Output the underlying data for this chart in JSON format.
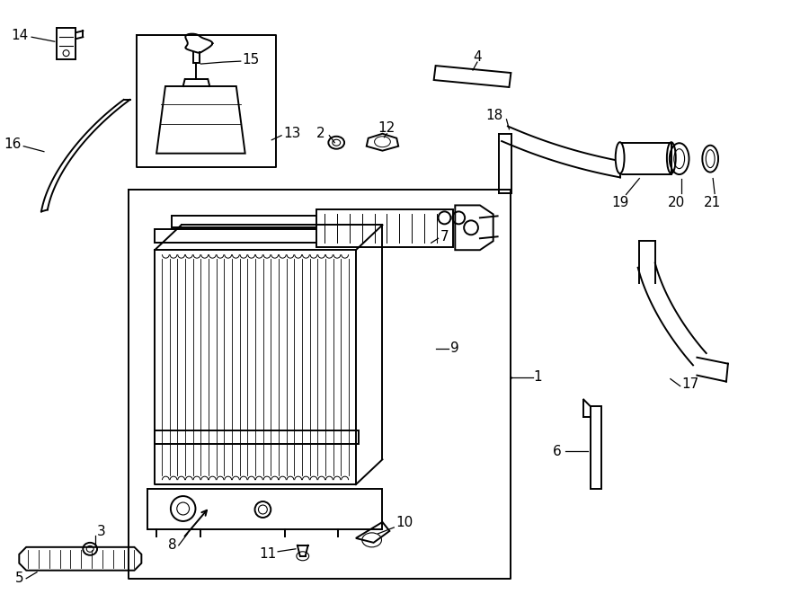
{
  "bg_color": "#ffffff",
  "line_color": "#000000",
  "text_color": "#000000",
  "fs": 11,
  "lw": 1.4
}
